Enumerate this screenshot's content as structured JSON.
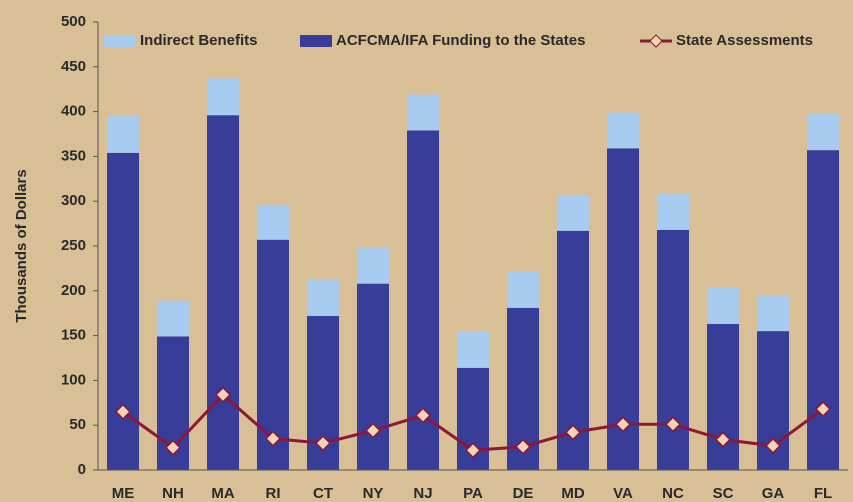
{
  "chart_data": {
    "type": "bar",
    "y_label": "Thousands of Dollars",
    "categories": [
      "ME",
      "NH",
      "MA",
      "RI",
      "CT",
      "NY",
      "NJ",
      "PA",
      "DE",
      "MD",
      "VA",
      "NC",
      "SC",
      "GA",
      "FL"
    ],
    "series": [
      {
        "name": "Indirect Benefits",
        "type": "bar",
        "color": "#a8ccef",
        "values": [
          41,
          40,
          41,
          39,
          40,
          40,
          40,
          40,
          40,
          40,
          40,
          40,
          40,
          40,
          41
        ]
      },
      {
        "name": "ACFCMA/IFA Funding to the States",
        "type": "bar",
        "color": "#383d99",
        "values": [
          354,
          149,
          396,
          257,
          172,
          208,
          379,
          114,
          181,
          267,
          359,
          268,
          163,
          155,
          357
        ]
      },
      {
        "name": "State Assessments",
        "type": "line",
        "color": "#8b1838",
        "marker_fill": "#f2d5b5",
        "values": [
          65,
          25,
          84,
          35,
          30,
          44,
          61,
          22,
          26,
          42,
          51,
          51,
          34,
          27,
          68
        ]
      }
    ],
    "ylim": [
      0,
      500
    ],
    "yticks": [
      0,
      50,
      100,
      150,
      200,
      250,
      300,
      350,
      400,
      450,
      500
    ],
    "grid": false
  }
}
